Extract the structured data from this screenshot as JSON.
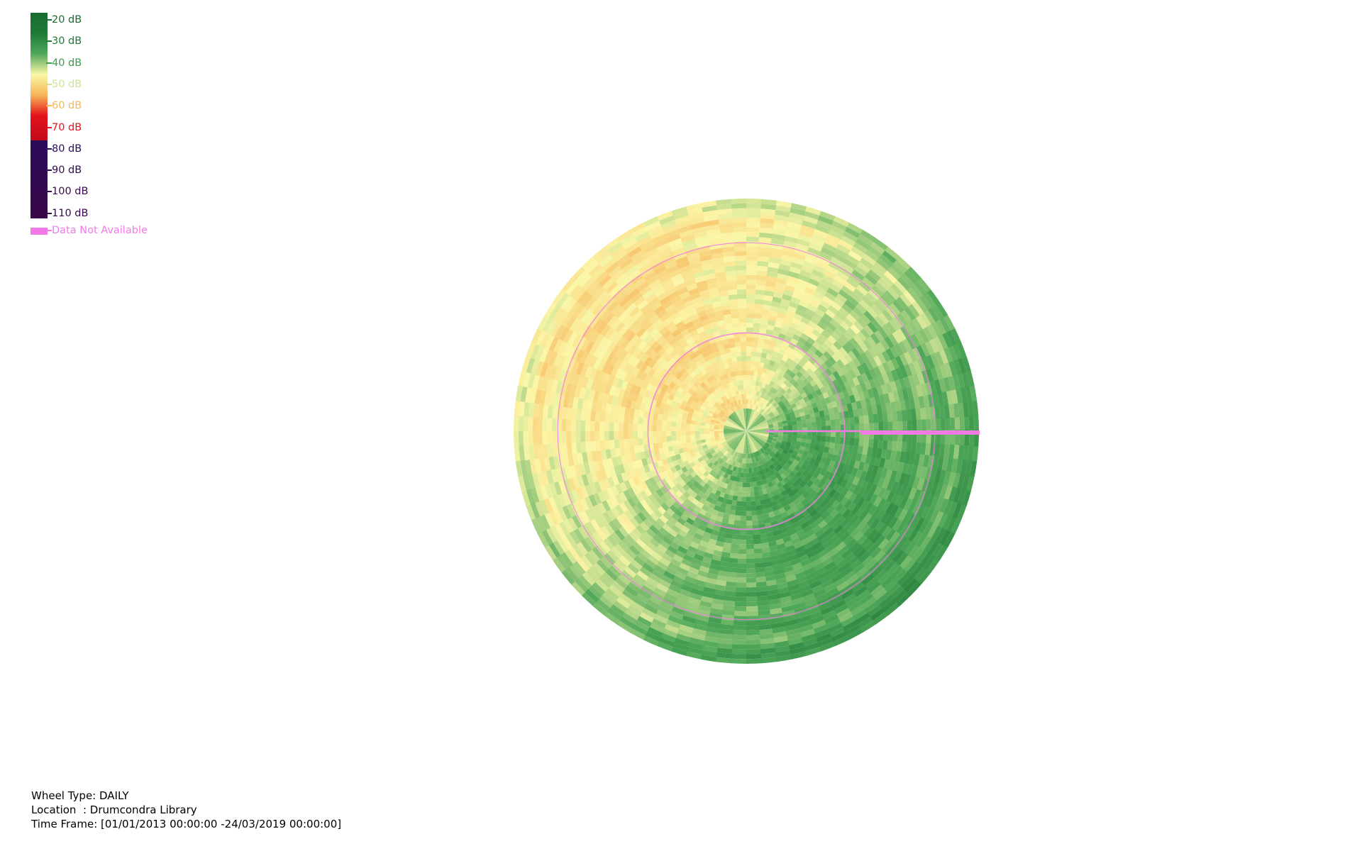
{
  "legend": {
    "ticks": [
      {
        "label": "20 dB",
        "color": "#1a6b30"
      },
      {
        "label": "30 dB",
        "color": "#1e7a36"
      },
      {
        "label": "40 dB",
        "color": "#3a9a4e"
      },
      {
        "label": "50 dB",
        "color": "#c9e68f"
      },
      {
        "label": "60 dB",
        "color": "#f6b65a"
      },
      {
        "label": "70 dB",
        "color": "#e3141c"
      },
      {
        "label": "80 dB",
        "color": "#2a0b5a"
      },
      {
        "label": "90 dB",
        "color": "#320a4e"
      },
      {
        "label": "100 dB",
        "color": "#3a0848"
      },
      {
        "label": "110 dB",
        "color": "#3a0848"
      }
    ],
    "not_available": {
      "label": "Data Not Available",
      "color": "#f27ae6"
    }
  },
  "chart_data": {
    "type": "heatmap",
    "polar": true,
    "angular_axis": "time of day",
    "radial_axis": "day",
    "color_scale": [
      {
        "value": 20,
        "color": "#1a6b30"
      },
      {
        "value": 30,
        "color": "#1e7a36"
      },
      {
        "value": 40,
        "color": "#51a85a"
      },
      {
        "value": 50,
        "color": "#fbf7a8"
      },
      {
        "value": 60,
        "color": "#f6b65a"
      },
      {
        "value": 70,
        "color": "#e3141c"
      },
      {
        "value": 80,
        "color": "#2a0b5a"
      },
      {
        "value": 110,
        "color": "#3a0848"
      }
    ],
    "not_available_color": "#f27ae6",
    "rings": 7,
    "pattern": "louder (about 55–60 dB) on the left and upper-left half, quieter (about 35–45 dB) on the lower-right half",
    "missing_segments": [
      {
        "description": "radial line to the right from the centre"
      },
      {
        "description": "inner ring boundary"
      },
      {
        "description": "outer ring boundary"
      }
    ]
  },
  "footer": {
    "wheel_type": "Wheel Type: DAILY",
    "location": "Location  : Drumcondra Library",
    "time_frame": "Time Frame: [01/01/2013 00:00:00 -24/03/2019 00:00:00]"
  }
}
